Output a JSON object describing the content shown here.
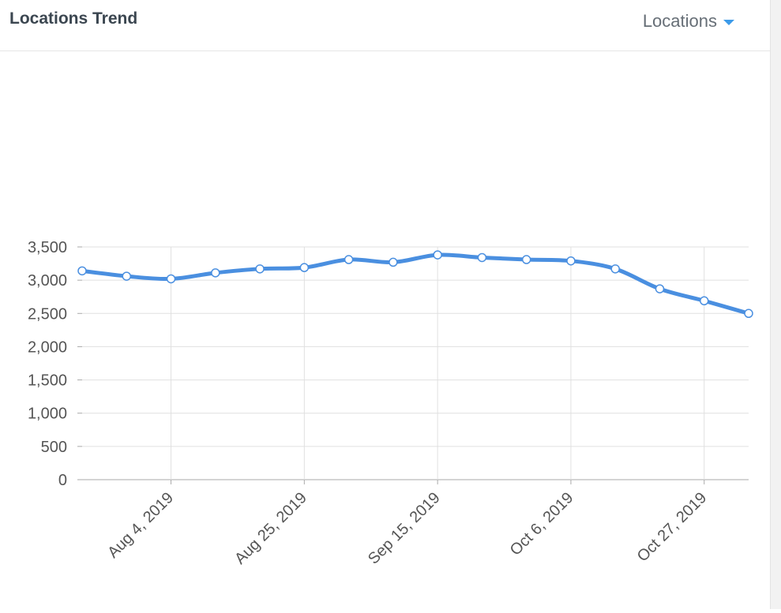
{
  "header": {
    "title": "Locations Trend",
    "dropdown_label": "Locations"
  },
  "icons": {
    "dropdown": "caret-down-icon"
  },
  "colors": {
    "line": "#4a8fe0",
    "accent": "#3d9be9"
  },
  "chart_data": {
    "type": "line",
    "title": "",
    "xlabel": "",
    "ylabel": "",
    "ylim": [
      0,
      3500
    ],
    "yticks": [
      0,
      500,
      1000,
      1500,
      2000,
      2500,
      3000,
      3500
    ],
    "ytick_labels": [
      "0",
      "500",
      "1,000",
      "1,500",
      "2,000",
      "2,500",
      "3,000",
      "3,500"
    ],
    "xtick_labels": [
      "Aug 4, 2019",
      "Aug 25, 2019",
      "Sep 15, 2019",
      "Oct 6, 2019",
      "Oct 27, 2019"
    ],
    "grid": true,
    "legend": "none",
    "series": [
      {
        "x": [
          "2019-07-21",
          "2019-07-28",
          "2019-08-04",
          "2019-08-11",
          "2019-08-18",
          "2019-08-25",
          "2019-09-01",
          "2019-09-08",
          "2019-09-15",
          "2019-09-22",
          "2019-09-29",
          "2019-10-06",
          "2019-10-13",
          "2019-10-20",
          "2019-10-27",
          "2019-11-03"
        ],
        "values": [
          3140,
          3060,
          3020,
          3110,
          3170,
          3190,
          3310,
          3270,
          3380,
          3340,
          3310,
          3290,
          3170,
          2870,
          2690,
          2500
        ]
      }
    ]
  }
}
